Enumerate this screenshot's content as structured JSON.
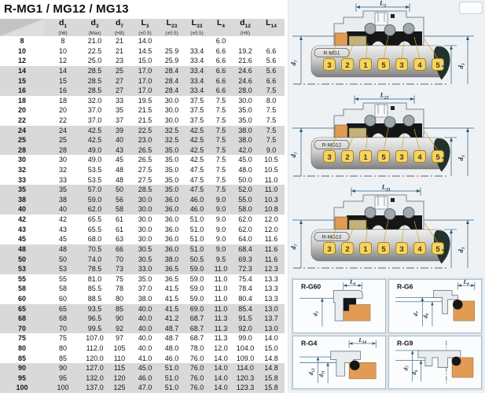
{
  "title": "R-MG1 / MG12 / MG13",
  "colors": {
    "dim": "#2c5a7a",
    "outline": "#5a666e",
    "housing": "#e9edf0",
    "bellows": "#161616",
    "spring": "#9fa8ad",
    "orange": "#e29b55",
    "tan": "#c3b37f",
    "shaft_light": "#f0f0f0",
    "shaft_dark": "#7f7f7f",
    "teardrop": "#22332e",
    "balloon_fill": "#f5d464",
    "balloon_border": "#a5841f",
    "balloon_text": "#4a3508",
    "leader": "#c9a62e",
    "row_gray": "#d9d9d9",
    "header_gray": "#d9d9d9"
  },
  "table": {
    "columns": [
      {
        "base": "",
        "sub": "",
        "tol": ""
      },
      {
        "base": "d",
        "sub": "1",
        "tol": "(h6)"
      },
      {
        "base": "d",
        "sub": "3",
        "tol": "(Max)"
      },
      {
        "base": "d",
        "sub": "7",
        "tol": "(H8)"
      },
      {
        "base": "L",
        "sub": "3",
        "tol": "(±0.5)"
      },
      {
        "base": "L",
        "sub": "23",
        "tol": "(±0.5)"
      },
      {
        "base": "L",
        "sub": "33",
        "tol": "(±0.5)"
      },
      {
        "base": "L",
        "sub": "4",
        "tol": ""
      },
      {
        "base": "d",
        "sub": "12",
        "tol": "(H8)"
      },
      {
        "base": "L",
        "sub": "14",
        "tol": ""
      }
    ],
    "rows": [
      {
        "id": "8",
        "cells": [
          "8",
          "21.0",
          "21",
          "14.0",
          "",
          "",
          "6.0",
          "",
          ""
        ]
      },
      {
        "id": "10",
        "cells": [
          "10",
          "22.5",
          "21",
          "14.5",
          "25.9",
          "33.4",
          "6.6",
          "19.2",
          "6.6"
        ]
      },
      {
        "id": "12",
        "cells": [
          "12",
          "25.0",
          "23",
          "15.0",
          "25.9",
          "33.4",
          "6.6",
          "21.6",
          "5.6"
        ]
      },
      {
        "id": "14",
        "cells": [
          "14",
          "28.5",
          "25",
          "17.0",
          "28.4",
          "33.4",
          "6.6",
          "24.6",
          "5.6"
        ]
      },
      {
        "id": "15",
        "cells": [
          "15",
          "28.5",
          "27",
          "17.0",
          "28.4",
          "33.4",
          "6.6",
          "24.6",
          "6.6"
        ]
      },
      {
        "id": "16",
        "cells": [
          "16",
          "28.5",
          "27",
          "17.0",
          "28.4",
          "33.4",
          "6.6",
          "28.0",
          "7.5"
        ]
      },
      {
        "id": "18",
        "cells": [
          "18",
          "32.0",
          "33",
          "19.5",
          "30.0",
          "37.5",
          "7.5",
          "30.0",
          "8.0"
        ]
      },
      {
        "id": "20",
        "cells": [
          "20",
          "37.0",
          "35",
          "21.5",
          "30.0",
          "37.5",
          "7.5",
          "35.0",
          "7.5"
        ]
      },
      {
        "id": "22",
        "cells": [
          "22",
          "37.0",
          "37",
          "21.5",
          "30.0",
          "37.5",
          "7.5",
          "35.0",
          "7.5"
        ]
      },
      {
        "id": "24",
        "cells": [
          "24",
          "42.5",
          "39",
          "22.5",
          "32.5",
          "42.5",
          "7.5",
          "38.0",
          "7.5"
        ]
      },
      {
        "id": "25",
        "cells": [
          "25",
          "42.5",
          "40",
          "23.0",
          "32.5",
          "42.5",
          "7.5",
          "38.0",
          "7.5"
        ]
      },
      {
        "id": "28",
        "cells": [
          "28",
          "49.0",
          "43",
          "26.5",
          "35.0",
          "42.5",
          "7.5",
          "42.0",
          "9.0"
        ]
      },
      {
        "id": "30",
        "cells": [
          "30",
          "49.0",
          "45",
          "26.5",
          "35.0",
          "42.5",
          "7.5",
          "45.0",
          "10.5"
        ]
      },
      {
        "id": "32",
        "cells": [
          "32",
          "53.5",
          "48",
          "27.5",
          "35.0",
          "47.5",
          "7.5",
          "48.0",
          "10.5"
        ]
      },
      {
        "id": "33",
        "cells": [
          "33",
          "53.5",
          "48",
          "27.5",
          "35.0",
          "47.5",
          "7.5",
          "50.0",
          "11.0"
        ]
      },
      {
        "id": "35",
        "cells": [
          "35",
          "57.0",
          "50",
          "28.5",
          "35.0",
          "47.5",
          "7.5",
          "52.0",
          "11.0"
        ]
      },
      {
        "id": "38",
        "cells": [
          "38",
          "59.0",
          "56",
          "30.0",
          "36.0",
          "46.0",
          "9.0",
          "55.0",
          "10.3"
        ]
      },
      {
        "id": "40",
        "cells": [
          "40",
          "62.0",
          "58",
          "30.0",
          "36.0",
          "46.0",
          "9.0",
          "58.0",
          "10.8"
        ]
      },
      {
        "id": "42",
        "cells": [
          "42",
          "65.5",
          "61",
          "30.0",
          "36.0",
          "51.0",
          "9.0",
          "62.0",
          "12.0"
        ]
      },
      {
        "id": "43",
        "cells": [
          "43",
          "65.5",
          "61",
          "30.0",
          "36.0",
          "51.0",
          "9.0",
          "62.0",
          "12.0"
        ]
      },
      {
        "id": "45",
        "cells": [
          "45",
          "68.0",
          "63",
          "30.0",
          "36.0",
          "51.0",
          "9.0",
          "64.0",
          "11.6"
        ]
      },
      {
        "id": "48",
        "cells": [
          "48",
          "70.5",
          "66",
          "30.5",
          "36.0",
          "51.0",
          "9.0",
          "68.4",
          "11.6"
        ]
      },
      {
        "id": "50",
        "cells": [
          "50",
          "74.0",
          "70",
          "30.5",
          "38.0",
          "50.5",
          "9.5",
          "69.3",
          "11.6"
        ]
      },
      {
        "id": "53",
        "cells": [
          "53",
          "78.5",
          "73",
          "33.0",
          "36.5",
          "59.0",
          "11.0",
          "72.3",
          "12.3"
        ]
      },
      {
        "id": "55",
        "cells": [
          "55",
          "81.0",
          "75",
          "35.0",
          "36.5",
          "59.0",
          "11.0",
          "75.4",
          "13.3"
        ]
      },
      {
        "id": "58",
        "cells": [
          "58",
          "85.5",
          "78",
          "37.0",
          "41.5",
          "59.0",
          "11.0",
          "78.4",
          "13.3"
        ]
      },
      {
        "id": "60",
        "cells": [
          "60",
          "88.5",
          "80",
          "38.0",
          "41.5",
          "59.0",
          "11.0",
          "80.4",
          "13.3"
        ]
      },
      {
        "id": "65",
        "cells": [
          "65",
          "93.5",
          "85",
          "40.0",
          "41.5",
          "69.0",
          "11.0",
          "85.4",
          "13.0"
        ]
      },
      {
        "id": "68",
        "cells": [
          "68",
          "96.5",
          "90",
          "40.0",
          "41.2",
          "68.7",
          "11.3",
          "91.5",
          "13.7"
        ]
      },
      {
        "id": "70",
        "cells": [
          "70",
          "99.5",
          "92",
          "40.0",
          "48.7",
          "68.7",
          "11.3",
          "92.0",
          "13.0"
        ]
      },
      {
        "id": "75",
        "cells": [
          "75",
          "107.0",
          "97",
          "40.0",
          "48.7",
          "68.7",
          "11.3",
          "99.0",
          "14.0"
        ]
      },
      {
        "id": "80",
        "cells": [
          "80",
          "112.0",
          "105",
          "40.0",
          "48.0",
          "78.0",
          "12.0",
          "104.0",
          "15.0"
        ]
      },
      {
        "id": "85",
        "cells": [
          "85",
          "120.0",
          "110",
          "41.0",
          "46.0",
          "76.0",
          "14.0",
          "109.0",
          "14.8"
        ]
      },
      {
        "id": "90",
        "cells": [
          "90",
          "127.0",
          "115",
          "45.0",
          "51.0",
          "76.0",
          "14.0",
          "114.0",
          "14.8"
        ]
      },
      {
        "id": "95",
        "cells": [
          "95",
          "132.0",
          "120",
          "46.0",
          "51.0",
          "76.0",
          "14.0",
          "120.3",
          "15.8"
        ]
      },
      {
        "id": "100",
        "cells": [
          "100",
          "137.0",
          "125",
          "47.0",
          "51.0",
          "76.0",
          "14.0",
          "123.3",
          "15.8"
        ]
      }
    ]
  },
  "diagrams": [
    {
      "label": "R-MG1",
      "dim_top": {
        "base": "L",
        "sub": "3"
      },
      "dim_left": {
        "base": "d",
        "sub": "7"
      },
      "dim_right1": {
        "base": "d",
        "sub": "1"
      },
      "dim_right2": {
        "base": "d",
        "sub": "3"
      },
      "balloons": [
        "3",
        "2",
        "1",
        "5",
        "3",
        "4",
        "5"
      ]
    },
    {
      "label": "R-MG12",
      "dim_top": {
        "base": "L",
        "sub": "23"
      },
      "dim_left": {
        "base": "d",
        "sub": "7"
      },
      "dim_right1": {
        "base": "d",
        "sub": "1"
      },
      "dim_right2": {
        "base": "d",
        "sub": "3"
      },
      "balloons": [
        "3",
        "2",
        "1",
        "5",
        "3",
        "4",
        "5"
      ]
    },
    {
      "label": "R-MG13",
      "dim_top": {
        "base": "L",
        "sub": "33"
      },
      "dim_left": {
        "base": "d",
        "sub": "7"
      },
      "dim_right1": {
        "base": "d",
        "sub": "1"
      },
      "dim_right2": {
        "base": "d",
        "sub": "3"
      },
      "balloons": [
        "3",
        "2",
        "1",
        "5",
        "3",
        "4",
        "5"
      ]
    }
  ],
  "details": [
    {
      "label": "R-G60",
      "dim_top": {
        "base": "L",
        "sub": "4"
      },
      "dims_left": [
        {
          "base": "d",
          "sub": "7"
        }
      ]
    },
    {
      "label": "R-G6",
      "dim_top": {
        "base": "L",
        "sub": "4"
      },
      "dims_left": [
        {
          "base": "d",
          "sub": "7"
        },
        {
          "base": "d",
          "sub": "6"
        }
      ]
    },
    {
      "label": "R-G4",
      "dim_top": {
        "base": "L",
        "sub": "14"
      },
      "dims_left": [
        {
          "base": "d",
          "sub": "12"
        },
        {
          "base": "d",
          "sub": "11"
        }
      ]
    },
    {
      "label": "R-G9",
      "dim_top": null,
      "dims_left": [
        {
          "base": "d",
          "sub": "7"
        },
        {
          "base": "d",
          "sub": "6"
        }
      ]
    }
  ]
}
